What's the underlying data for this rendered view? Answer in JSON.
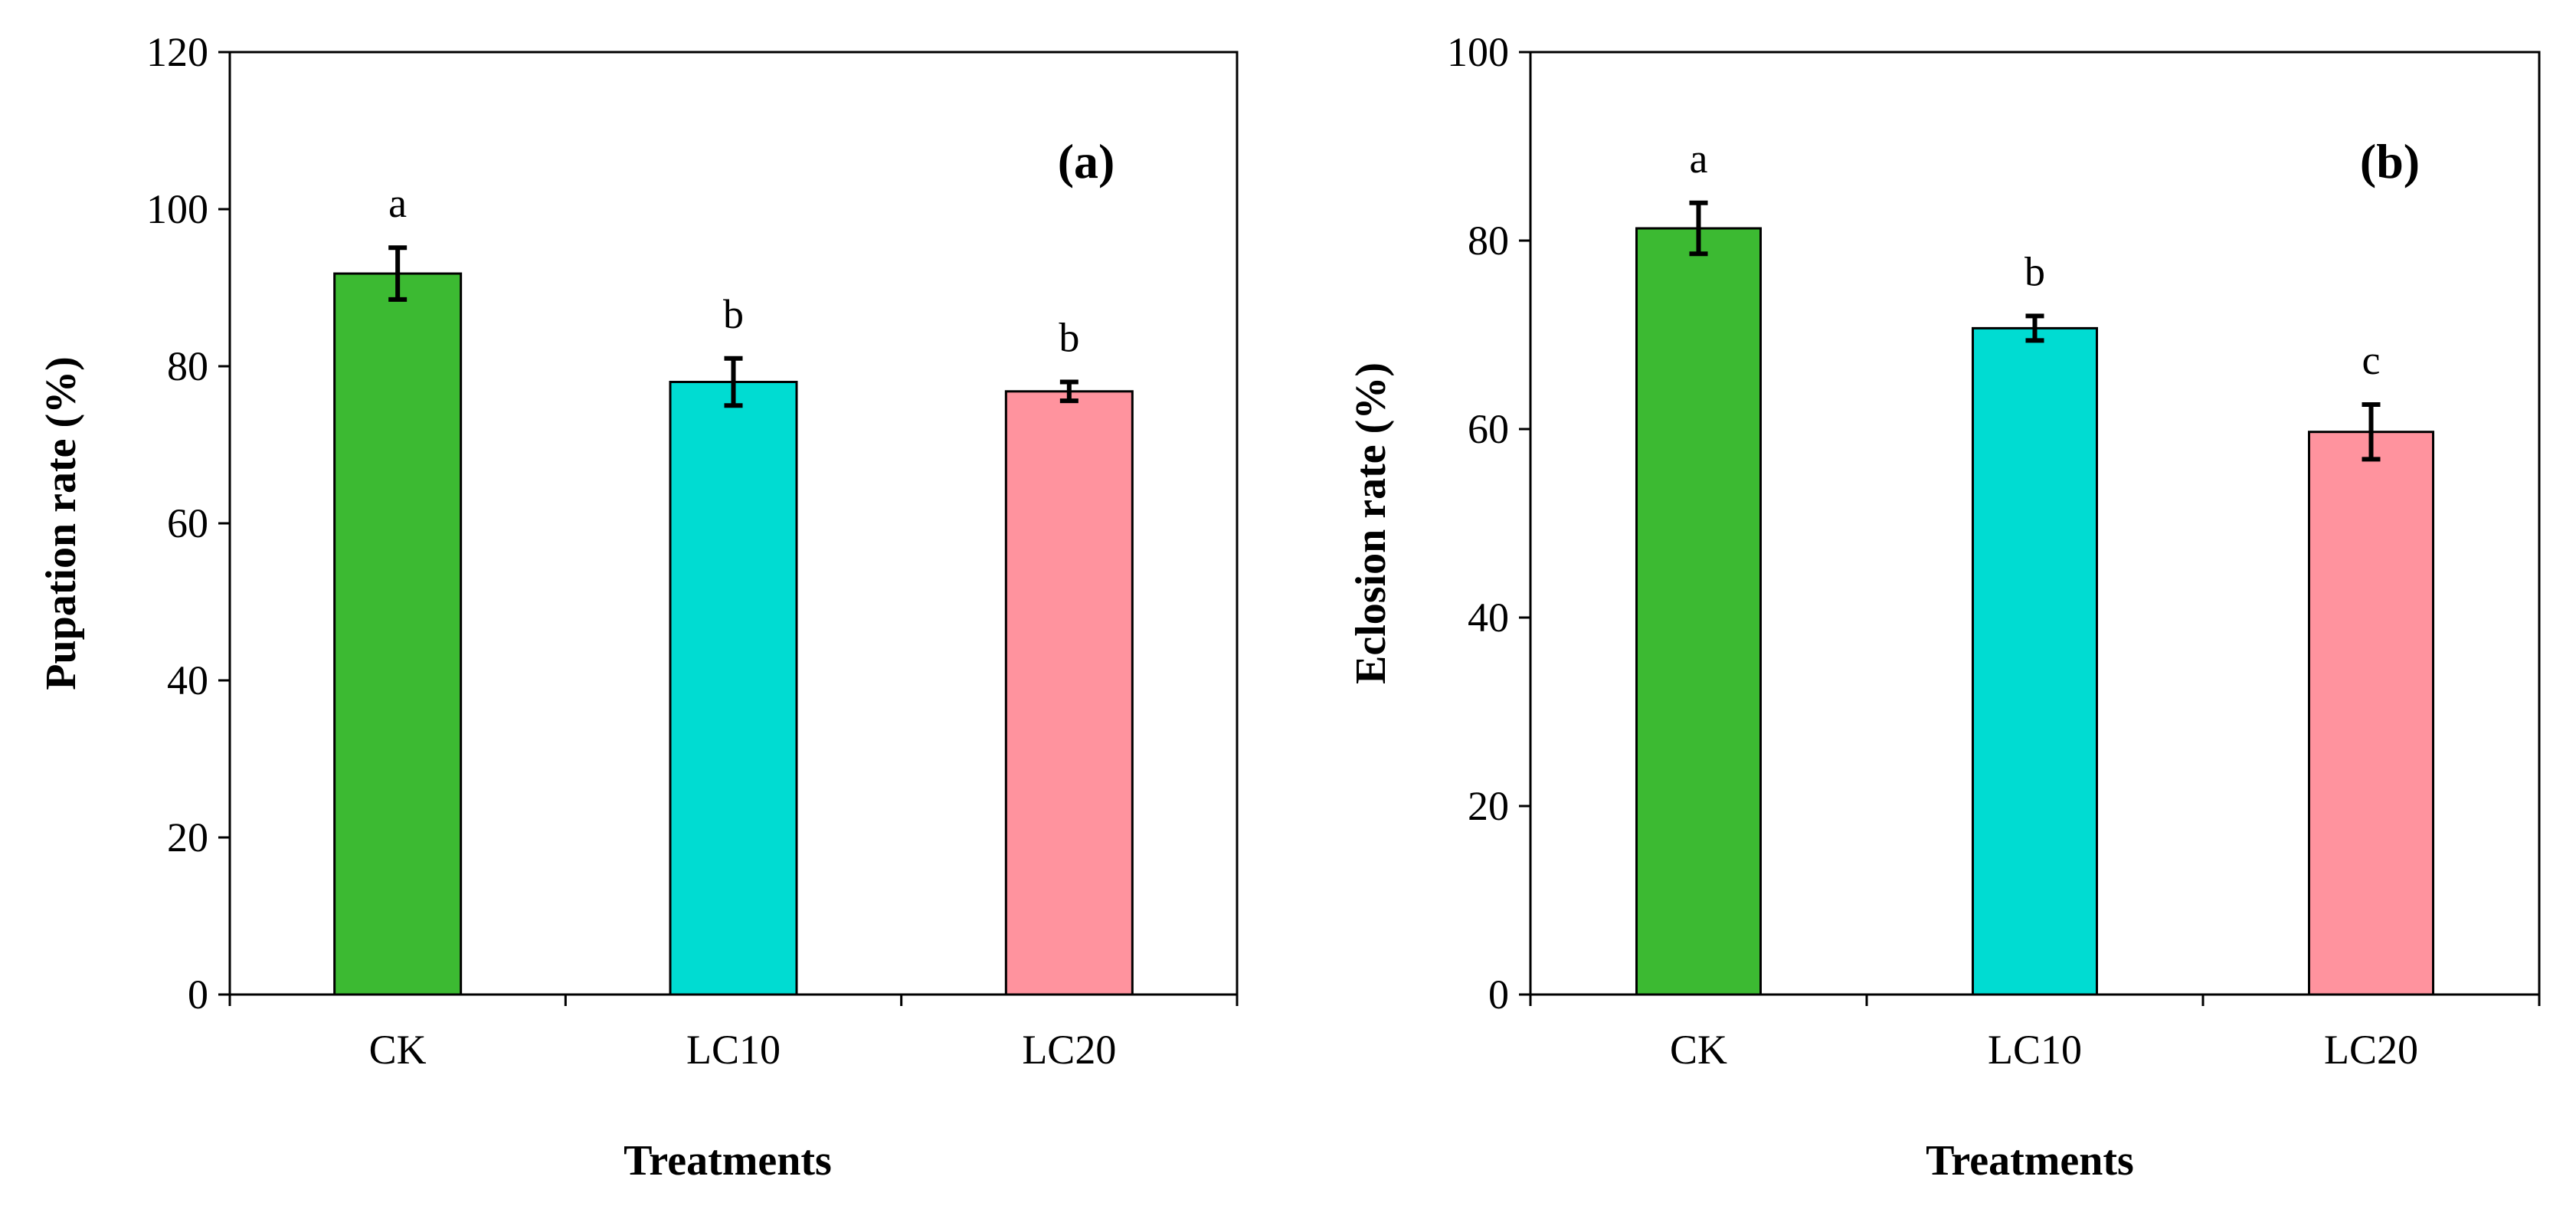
{
  "chart_data": [
    {
      "type": "bar",
      "panel_label": "(a)",
      "title": "",
      "xlabel": "Treatments",
      "ylabel": "Pupation rate (%)",
      "ylim": [
        0,
        120
      ],
      "yticks": [
        0,
        20,
        40,
        60,
        80,
        100,
        120
      ],
      "grid": false,
      "categories": [
        "CK",
        "LC10",
        "LC20"
      ],
      "values": [
        91.8,
        78.0,
        76.8
      ],
      "errors": [
        3.3,
        3.0,
        1.2
      ],
      "significance": [
        "a",
        "b",
        "b"
      ],
      "colors": [
        "#3cba32",
        "#00dcd2",
        "#ff939e"
      ]
    },
    {
      "type": "bar",
      "panel_label": "(b)",
      "title": "",
      "xlabel": "Treatments",
      "ylabel": "Eclosion rate (%)",
      "ylim": [
        0,
        100
      ],
      "yticks": [
        0,
        20,
        40,
        60,
        80,
        100
      ],
      "grid": false,
      "categories": [
        "CK",
        "LC10",
        "LC20"
      ],
      "values": [
        81.3,
        70.7,
        59.7
      ],
      "errors": [
        2.7,
        1.3,
        2.9
      ],
      "significance": [
        "a",
        "b",
        "c"
      ],
      "colors": [
        "#3cba32",
        "#00dcd2",
        "#ff939e"
      ]
    }
  ]
}
